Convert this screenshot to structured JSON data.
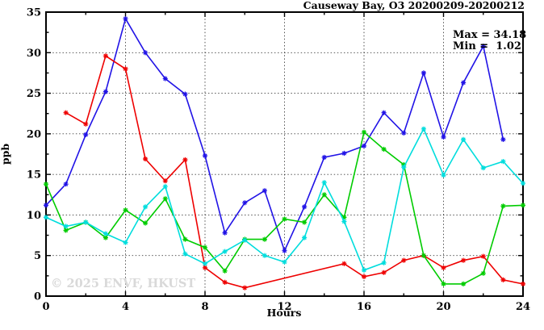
{
  "title": "Causeway Bay, O3 20200209-20200212",
  "stats": {
    "max_label": "Max = 34.18",
    "min_label": "Min =  1.02"
  },
  "watermark": "© 2025 ENVF, HKUST",
  "chart_data": {
    "type": "line",
    "title": "Causeway Bay, O3 20200209-20200212",
    "xlabel": "Hours",
    "ylabel": "ppb",
    "xlim": [
      0,
      24
    ],
    "ylim": [
      0,
      35
    ],
    "x_major_ticks": [
      0,
      4,
      8,
      12,
      16,
      20,
      24
    ],
    "x_minor_step": 2,
    "y_major_ticks": [
      0,
      5,
      10,
      15,
      20,
      25,
      30,
      35
    ],
    "y_minor_step": 2.5,
    "grid": true,
    "legend_position": "none",
    "marker": "asterisk",
    "max_value": 34.18,
    "min_value": 1.02,
    "x": [
      0,
      1,
      2,
      3,
      4,
      5,
      6,
      7,
      8,
      9,
      10,
      11,
      12,
      13,
      14,
      15,
      16,
      17,
      18,
      19,
      20,
      21,
      22,
      23,
      24
    ],
    "series": [
      {
        "name": "blue",
        "color": "#2113e6",
        "values": [
          11.2,
          13.8,
          19.9,
          25.2,
          34.18,
          30.0,
          26.8,
          24.9,
          17.3,
          7.8,
          11.5,
          13.0,
          5.6,
          11.0,
          17.1,
          17.6,
          18.5,
          22.6,
          20.1,
          27.5,
          19.6,
          26.3,
          30.8,
          19.3,
          null
        ]
      },
      {
        "name": "red",
        "color": "#ee0000",
        "values": [
          null,
          22.6,
          21.2,
          29.6,
          28.0,
          16.9,
          14.2,
          16.8,
          3.5,
          1.7,
          1.02,
          null,
          null,
          null,
          null,
          4.0,
          2.4,
          2.9,
          4.4,
          5.0,
          3.5,
          4.4,
          4.9,
          2.0,
          1.5
        ]
      },
      {
        "name": "green",
        "color": "#00cc00",
        "values": [
          13.8,
          8.1,
          9.1,
          7.2,
          10.6,
          9.0,
          12.0,
          7.0,
          6.0,
          3.1,
          7.0,
          7.0,
          9.5,
          9.1,
          12.5,
          9.7,
          20.2,
          18.1,
          16.2,
          5.0,
          1.5,
          1.5,
          2.8,
          11.1,
          11.2
        ]
      },
      {
        "name": "cyan",
        "color": "#00dddd",
        "values": [
          9.7,
          8.6,
          9.1,
          7.7,
          6.6,
          11.0,
          13.5,
          5.2,
          4.0,
          5.5,
          6.9,
          5.0,
          4.2,
          7.2,
          14.0,
          9.2,
          3.2,
          4.1,
          15.9,
          20.6,
          14.9,
          19.3,
          15.8,
          16.6,
          13.9
        ]
      }
    ]
  }
}
